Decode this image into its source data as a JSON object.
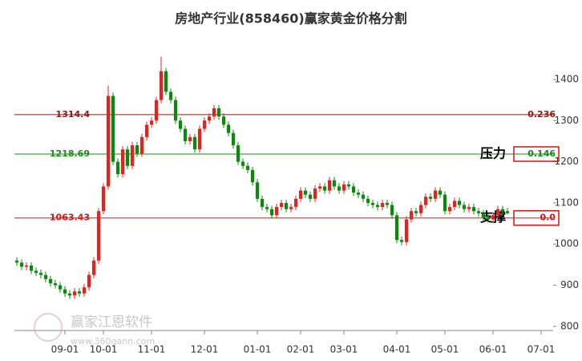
{
  "chart_data": {
    "type": "candlestick",
    "title": "房地产行业(858460)赢家黄金价格分割",
    "categories": [
      null,
      null,
      null,
      null,
      null,
      null,
      null,
      null,
      null,
      null,
      "09-01",
      null,
      null,
      null,
      null,
      null,
      null,
      null,
      "10-01",
      null,
      null,
      null,
      null,
      null,
      null,
      null,
      null,
      null,
      "11-01",
      null,
      null,
      null,
      null,
      null,
      null,
      null,
      null,
      null,
      null,
      "12-01",
      null,
      null,
      null,
      null,
      null,
      null,
      null,
      null,
      null,
      null,
      "01-01",
      null,
      null,
      null,
      null,
      null,
      null,
      null,
      null,
      "02-01",
      null,
      null,
      null,
      null,
      null,
      null,
      null,
      null,
      "03-01",
      null,
      null,
      null,
      null,
      null,
      null,
      null,
      null,
      null,
      null,
      "04-01",
      null,
      null,
      null,
      null,
      null,
      null,
      null,
      null,
      null,
      "05-01",
      null,
      null,
      null,
      null,
      null,
      null,
      null,
      null,
      null,
      "06-01",
      null,
      null,
      null,
      null,
      null,
      null,
      null,
      null,
      null,
      "07-01",
      null,
      null
    ],
    "open": [
      960,
      955,
      945,
      948,
      935,
      930,
      925,
      915,
      905,
      900,
      890,
      880,
      875,
      885,
      880,
      895,
      925,
      960,
      1080,
      1140,
      1360,
      1200,
      1170,
      1230,
      1190,
      1240,
      1220,
      1260,
      1290,
      1300,
      1350,
      1420,
      1370,
      1350,
      1300,
      1280,
      1250,
      1260,
      1230,
      1280,
      1300,
      1310,
      1330,
      1310,
      1290,
      1270,
      1240,
      1200,
      1190,
      1180,
      1150,
      1110,
      1090,
      1085,
      1070,
      1090,
      1100,
      1085,
      1090,
      1110,
      1130,
      1120,
      1110,
      1135,
      1140,
      1130,
      1155,
      1140,
      1130,
      1145,
      1140,
      1125,
      1120,
      1110,
      1100,
      1095,
      1090,
      1100,
      1095,
      1070,
      1010,
      1005,
      1060,
      1080,
      1075,
      1095,
      1115,
      1110,
      1130,
      1120,
      1080,
      1090,
      1105,
      1095,
      1085,
      1090,
      1080,
      1075,
      1065,
      1060,
      1070,
      1085,
      1080,
      null,
      null,
      null,
      null,
      null,
      null,
      null,
      null,
      null
    ],
    "high": [
      968,
      963,
      956,
      956,
      943,
      938,
      933,
      923,
      913,
      908,
      898,
      888,
      893,
      893,
      903,
      933,
      968,
      1088,
      1148,
      1385,
      1368,
      1208,
      1238,
      1238,
      1248,
      1248,
      1268,
      1298,
      1308,
      1358,
      1455,
      1428,
      1378,
      1358,
      1308,
      1288,
      1268,
      1268,
      1288,
      1308,
      1318,
      1338,
      1338,
      1318,
      1298,
      1278,
      1248,
      1208,
      1198,
      1188,
      1158,
      1118,
      1098,
      1093,
      1098,
      1108,
      1108,
      1098,
      1118,
      1138,
      1138,
      1128,
      1143,
      1148,
      1148,
      1163,
      1163,
      1148,
      1153,
      1153,
      1148,
      1133,
      1128,
      1118,
      1108,
      1103,
      1108,
      1108,
      1103,
      1078,
      1018,
      1068,
      1088,
      1088,
      1103,
      1123,
      1123,
      1138,
      1138,
      1128,
      1098,
      1113,
      1113,
      1103,
      1098,
      1098,
      1088,
      1083,
      1073,
      1078,
      1093,
      1093,
      1088,
      null,
      null,
      null,
      null,
      null,
      null,
      null,
      null,
      null
    ],
    "low": [
      947,
      937,
      937,
      927,
      922,
      917,
      907,
      897,
      892,
      882,
      872,
      867,
      867,
      872,
      872,
      887,
      917,
      952,
      1072,
      1132,
      1192,
      1162,
      1162,
      1182,
      1182,
      1212,
      1212,
      1252,
      1282,
      1292,
      1342,
      1362,
      1342,
      1292,
      1272,
      1242,
      1242,
      1222,
      1222,
      1272,
      1292,
      1302,
      1302,
      1282,
      1262,
      1232,
      1192,
      1182,
      1172,
      1142,
      1102,
      1082,
      1077,
      1062,
      1062,
      1082,
      1077,
      1077,
      1082,
      1102,
      1112,
      1102,
      1102,
      1127,
      1122,
      1122,
      1132,
      1122,
      1122,
      1132,
      1117,
      1112,
      1102,
      1092,
      1087,
      1082,
      1082,
      1087,
      1062,
      1002,
      997,
      997,
      1052,
      1067,
      1067,
      1087,
      1102,
      1102,
      1112,
      1072,
      1072,
      1082,
      1087,
      1077,
      1077,
      1072,
      1067,
      1057,
      1052,
      1052,
      1062,
      1072,
      1072,
      null,
      null,
      null,
      null,
      null,
      null,
      null,
      null,
      null
    ],
    "close": [
      955,
      945,
      948,
      935,
      930,
      925,
      915,
      905,
      900,
      890,
      880,
      875,
      885,
      880,
      895,
      925,
      960,
      1080,
      1140,
      1360,
      1200,
      1170,
      1230,
      1190,
      1240,
      1220,
      1260,
      1290,
      1300,
      1350,
      1420,
      1370,
      1350,
      1300,
      1280,
      1250,
      1260,
      1230,
      1280,
      1300,
      1310,
      1330,
      1310,
      1290,
      1270,
      1240,
      1200,
      1190,
      1180,
      1150,
      1110,
      1090,
      1085,
      1070,
      1090,
      1100,
      1085,
      1090,
      1110,
      1130,
      1120,
      1110,
      1135,
      1140,
      1130,
      1155,
      1140,
      1130,
      1145,
      1140,
      1125,
      1120,
      1110,
      1100,
      1095,
      1090,
      1100,
      1095,
      1070,
      1010,
      1005,
      1060,
      1080,
      1075,
      1095,
      1115,
      1110,
      1130,
      1120,
      1080,
      1090,
      1105,
      1095,
      1085,
      1090,
      1080,
      1075,
      1065,
      1060,
      1070,
      1085,
      1080,
      1075,
      null,
      null,
      null,
      null,
      null,
      null,
      null,
      null,
      null
    ],
    "up_color": "#e8201e",
    "down_color": "#0a8a0a",
    "ylim": [
      790,
      1515
    ],
    "yticks": [
      800,
      900,
      1000,
      1100,
      1200,
      1300,
      1400
    ],
    "levels": [
      {
        "price": 1314.4,
        "ratio": 0.236,
        "color": "#8b1a1a"
      },
      {
        "price": 1218.69,
        "ratio": 0.146,
        "color": "#1a8a1a"
      },
      {
        "price": 1063.43,
        "ratio": {
          "value": 0,
          "label": "0.0"
        },
        "color": "#e01010"
      }
    ],
    "resistance_label": "压力",
    "support_label": "支撑",
    "watermark": "赢家江恩软件",
    "watermark_url": "www.360gann.com"
  }
}
